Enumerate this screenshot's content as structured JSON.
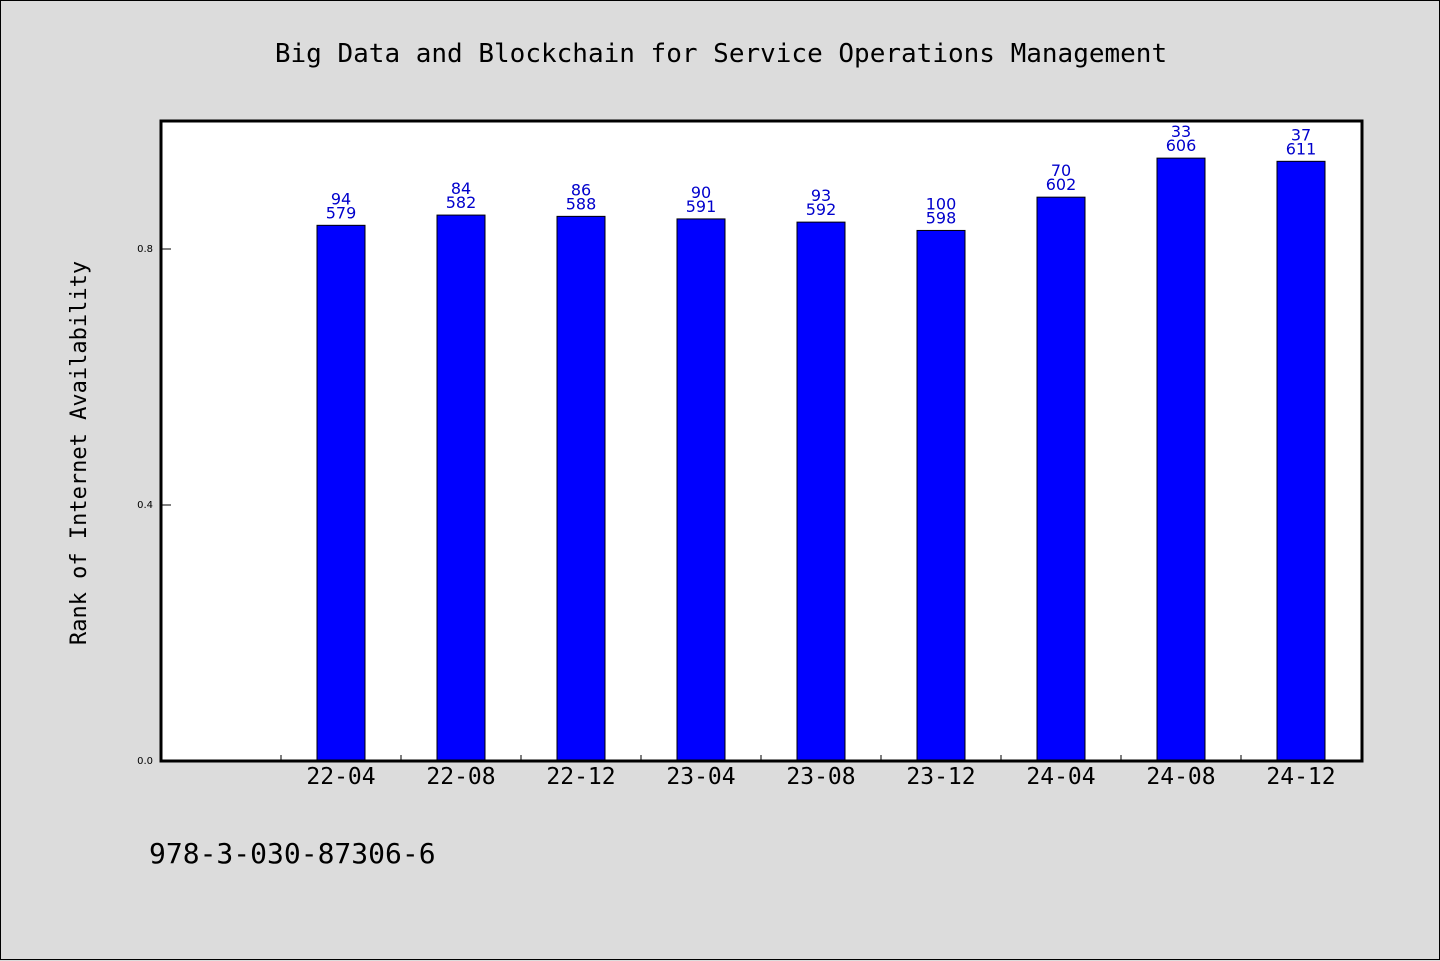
{
  "chart_data": {
    "type": "bar",
    "title": "Big Data and Blockchain for Service Operations Management",
    "xlabel": "",
    "ylabel": "Rank of Internet Availability",
    "ylim": [
      0,
      1.0
    ],
    "yticks": [
      "0.0",
      "0.4",
      "0.8"
    ],
    "ytick_values": [
      0.0,
      0.4,
      0.8
    ],
    "categories": [
      "22-04",
      "22-08",
      "22-12",
      "23-04",
      "23-08",
      "23-12",
      "24-04",
      "24-08",
      "24-12"
    ],
    "values": [
      0.837,
      0.853,
      0.851,
      0.847,
      0.842,
      0.829,
      0.881,
      0.942,
      0.937
    ],
    "label_top": [
      "94",
      "84",
      "86",
      "90",
      "93",
      "100",
      "70",
      "33",
      "37"
    ],
    "label_bottom": [
      "579",
      "582",
      "588",
      "591",
      "592",
      "598",
      "602",
      "606",
      "611"
    ],
    "bar_color": "#0000ff",
    "label_color": "#0000cc",
    "grid": false,
    "legend": "none"
  },
  "footer": {
    "isbn": "978-3-030-87306-6"
  }
}
